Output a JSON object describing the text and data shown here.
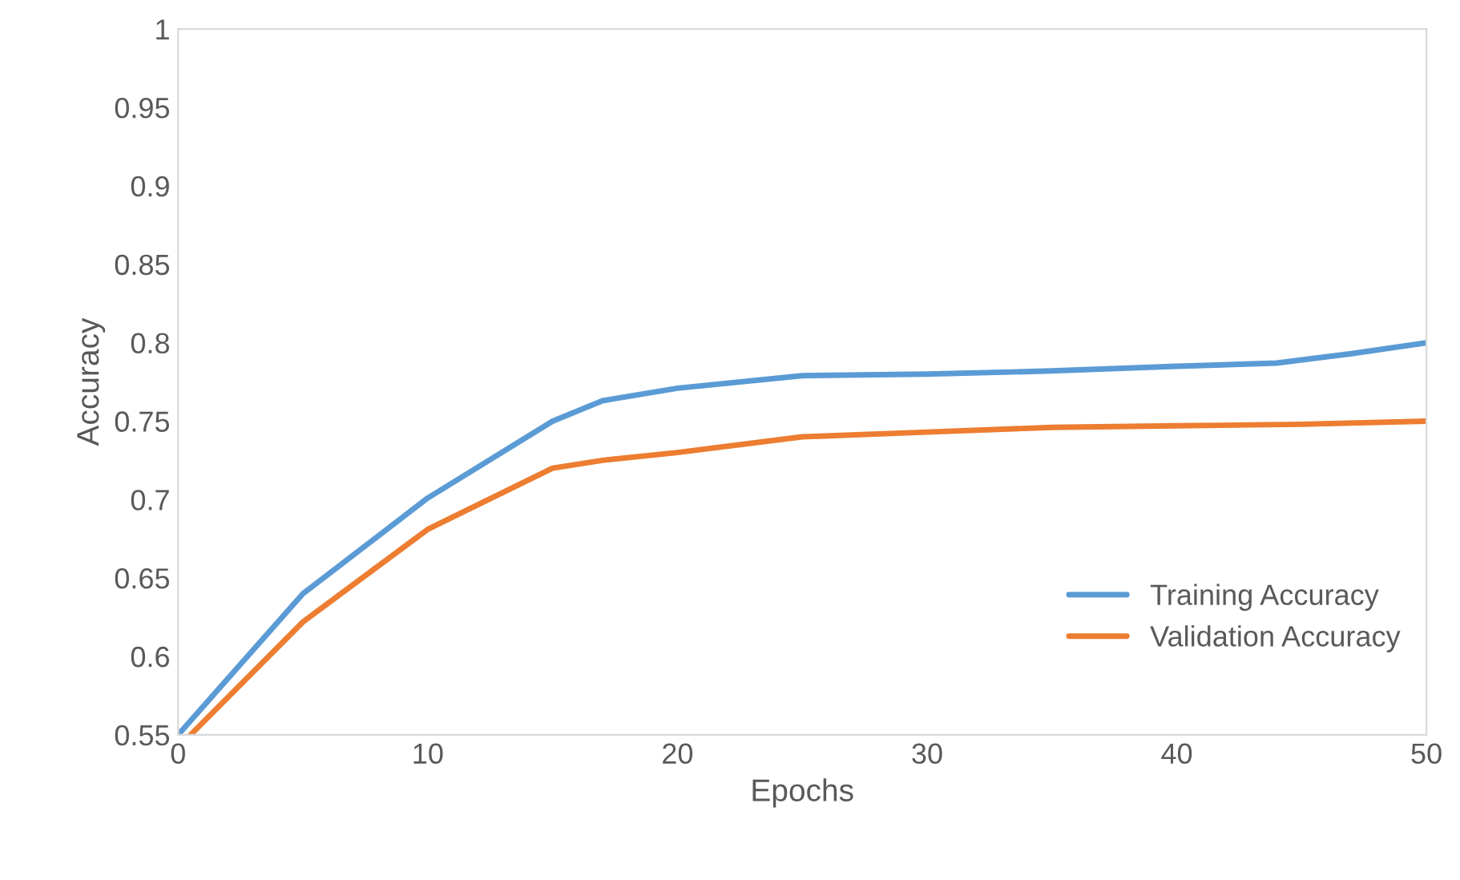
{
  "chart_data": {
    "type": "line",
    "xlabel": "Epochs",
    "ylabel": "Accuracy",
    "series": [
      {
        "name": "Training Accuracy",
        "color": "#5b9bd5",
        "x": [
          0,
          5,
          10,
          15,
          17,
          20,
          25,
          30,
          35,
          40,
          44,
          47,
          50
        ],
        "values": [
          0.55,
          0.64,
          0.701,
          0.75,
          0.763,
          0.771,
          0.779,
          0.78,
          0.782,
          0.785,
          0.787,
          0.793,
          0.8
        ]
      },
      {
        "name": "Validation Accuracy",
        "color": "#ed7d31",
        "x": [
          0.5,
          5,
          10,
          15,
          17,
          20,
          25,
          30,
          35,
          40,
          45,
          50
        ],
        "values": [
          0.55,
          0.622,
          0.681,
          0.72,
          0.725,
          0.73,
          0.74,
          0.743,
          0.746,
          0.747,
          0.748,
          0.75
        ]
      }
    ],
    "xlim": [
      0,
      50
    ],
    "xticks": [
      0,
      10,
      20,
      30,
      40,
      50
    ],
    "ylim": [
      0.55,
      1
    ],
    "yticks": [
      0.55,
      0.6,
      0.65,
      0.7,
      0.75,
      0.8,
      0.85,
      0.9,
      0.95,
      1
    ],
    "grid": false,
    "legend": "bottom right",
    "marker": "none",
    "line_style": "solid"
  }
}
